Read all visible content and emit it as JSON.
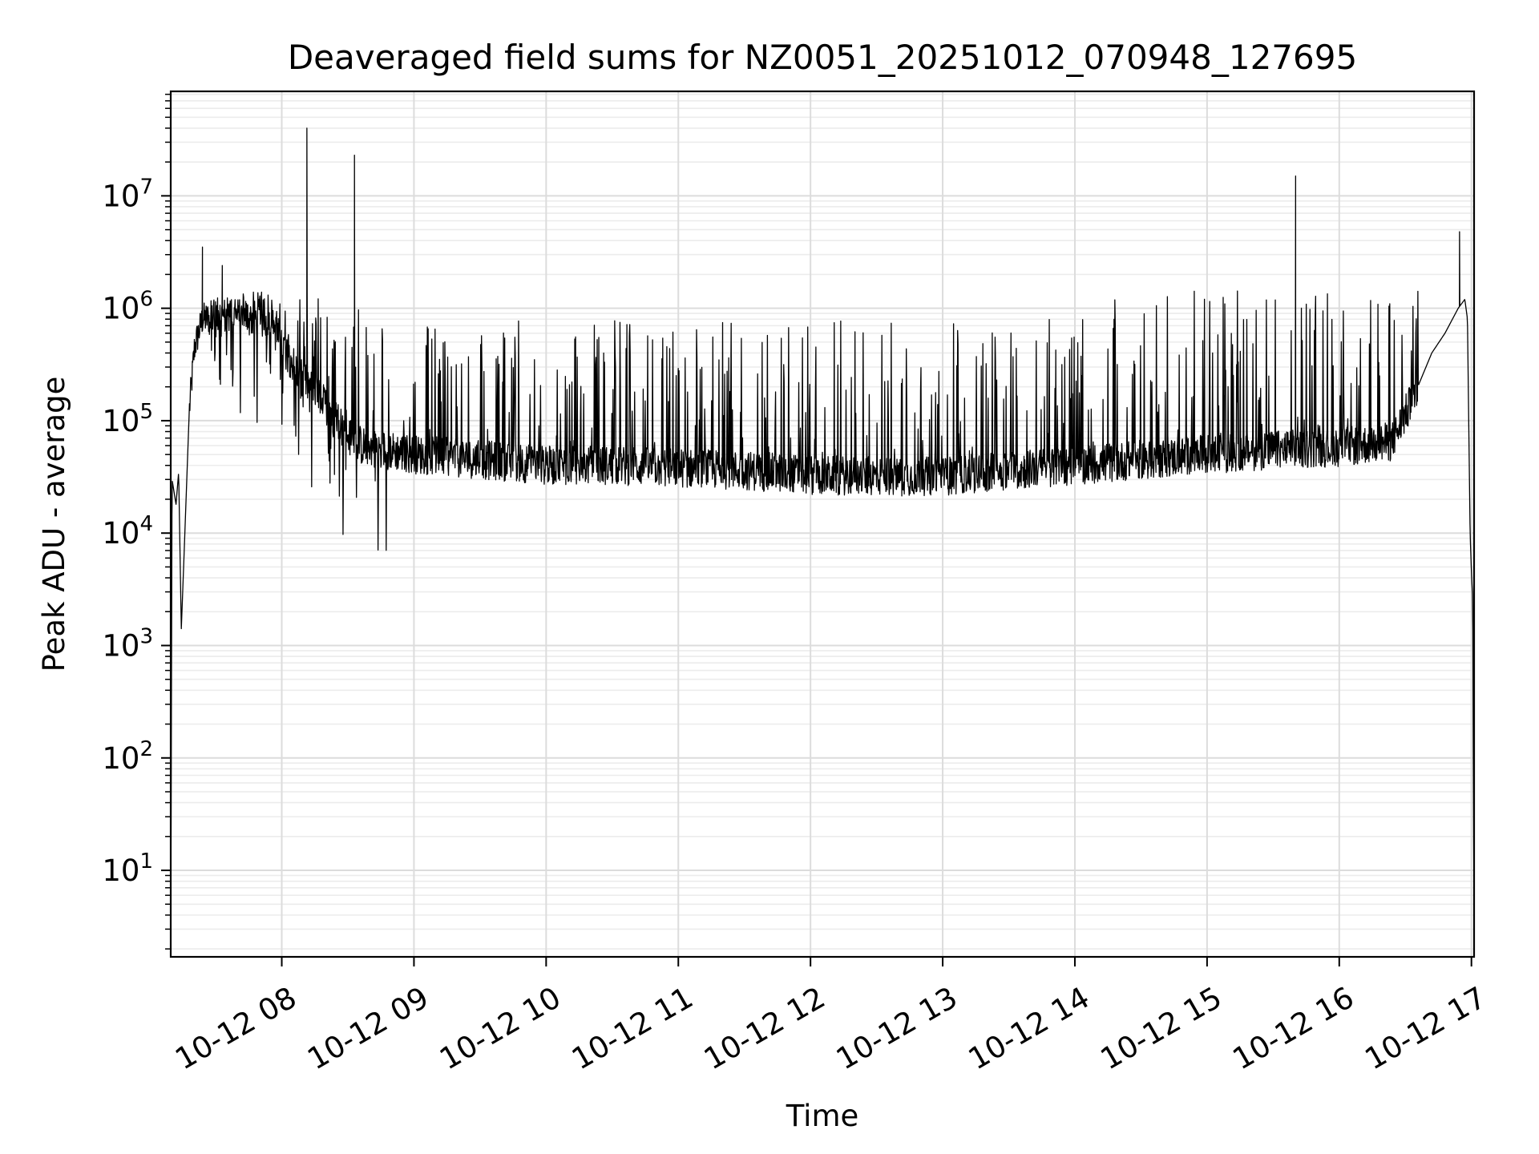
{
  "chart_data": {
    "type": "line",
    "title": "Deaveraged field sums for NZ0051_20251012_070948_127695",
    "xlabel": "Time",
    "ylabel": "Peak ADU - average",
    "yscale": "log",
    "xlim_hours": [
      7.16,
      17.02
    ],
    "ylim": [
      1.7,
      85000000
    ],
    "grid": true,
    "grid_minor": true,
    "legend": "none",
    "line_color": "#000000",
    "x_ticks": [
      {
        "value": 8,
        "label": "10-12 08"
      },
      {
        "value": 9,
        "label": "10-12 09"
      },
      {
        "value": 10,
        "label": "10-12 10"
      },
      {
        "value": 11,
        "label": "10-12 11"
      },
      {
        "value": 12,
        "label": "10-12 12"
      },
      {
        "value": 13,
        "label": "10-12 13"
      },
      {
        "value": 14,
        "label": "10-12 14"
      },
      {
        "value": 15,
        "label": "10-12 15"
      },
      {
        "value": 16,
        "label": "10-12 16"
      },
      {
        "value": 17,
        "label": "10-12 17"
      }
    ],
    "y_ticks": [
      {
        "value": 10,
        "base": "10",
        "exp": "1"
      },
      {
        "value": 100,
        "base": "10",
        "exp": "2"
      },
      {
        "value": 1000,
        "base": "10",
        "exp": "3"
      },
      {
        "value": 10000,
        "base": "10",
        "exp": "4"
      },
      {
        "value": 100000,
        "base": "10",
        "exp": "5"
      },
      {
        "value": 1000000,
        "base": "10",
        "exp": "6"
      },
      {
        "value": 10000000,
        "base": "10",
        "exp": "7"
      }
    ],
    "series": [
      {
        "name": "deaveraged field sum",
        "description": "Dense time series; baseline envelope points [hour, value] with spikes listed separately",
        "baseline": [
          [
            7.16,
            2.0
          ],
          [
            7.17,
            30000
          ],
          [
            7.2,
            18000
          ],
          [
            7.22,
            35000
          ],
          [
            7.24,
            1400
          ],
          [
            7.26,
            6000
          ],
          [
            7.3,
            120000
          ],
          [
            7.34,
            450000
          ],
          [
            7.4,
            800000
          ],
          [
            7.6,
            850000
          ],
          [
            7.9,
            800000
          ],
          [
            8.1,
            300000
          ],
          [
            8.3,
            150000
          ],
          [
            8.6,
            60000
          ],
          [
            9.0,
            50000
          ],
          [
            9.5,
            45000
          ],
          [
            10.0,
            40000
          ],
          [
            10.5,
            40000
          ],
          [
            11.0,
            38000
          ],
          [
            11.5,
            36000
          ],
          [
            12.0,
            33000
          ],
          [
            12.5,
            32000
          ],
          [
            13.0,
            32000
          ],
          [
            13.5,
            36000
          ],
          [
            14.0,
            40000
          ],
          [
            14.5,
            45000
          ],
          [
            15.0,
            50000
          ],
          [
            15.5,
            55000
          ],
          [
            16.0,
            58000
          ],
          [
            16.4,
            65000
          ],
          [
            16.55,
            150000
          ],
          [
            16.7,
            400000
          ],
          [
            16.8,
            600000
          ],
          [
            16.9,
            1000000
          ],
          [
            16.95,
            1200000
          ],
          [
            16.97,
            800000
          ],
          [
            16.99,
            10000
          ],
          [
            17.0,
            4500
          ],
          [
            17.01,
            2500
          ],
          [
            17.015,
            50
          ],
          [
            17.02,
            4.0
          ]
        ],
        "spikes": [
          [
            7.4,
            3500000
          ],
          [
            7.55,
            2400000
          ],
          [
            8.19,
            40000000
          ],
          [
            8.55,
            23000000
          ],
          [
            15.67,
            15000000
          ],
          [
            16.91,
            4800000
          ]
        ]
      }
    ]
  }
}
